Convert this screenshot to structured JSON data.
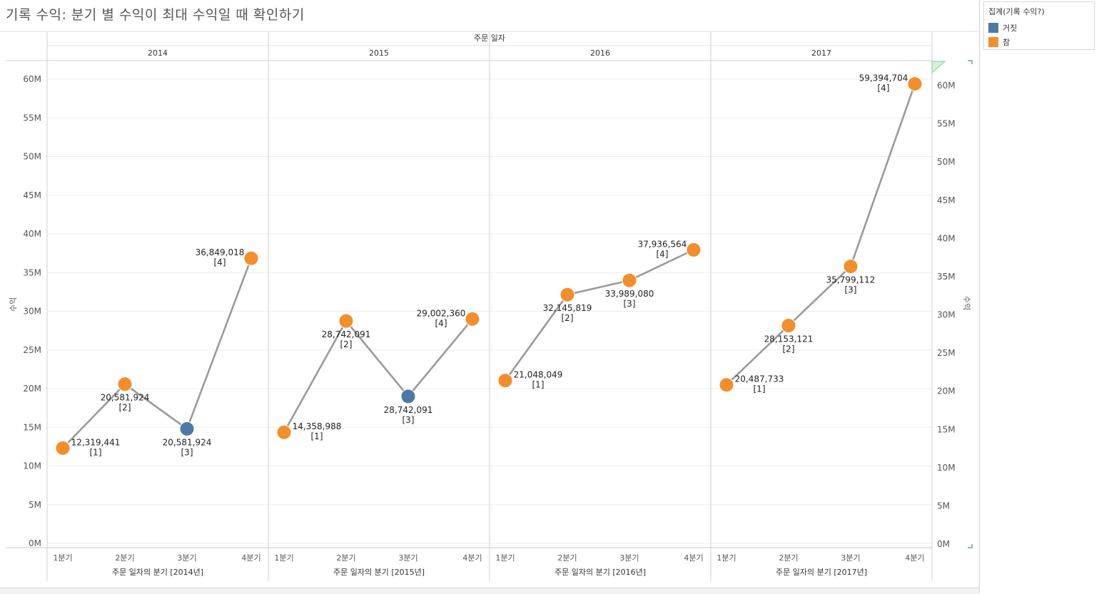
{
  "title": "기록 수익: 분기 별 수익이 최대 수익일 때 확인하기",
  "legend": {
    "title": "집계(기록 수익?)",
    "items": [
      {
        "label": "거짓",
        "color": "#4e79a7"
      },
      {
        "label": "참",
        "color": "#f28e2b"
      }
    ]
  },
  "chart_data": {
    "type": "line",
    "column_header": "주문 일자",
    "ylabel_left": "수익",
    "ylabel_right": "수익",
    "ylim": [
      0,
      62000000
    ],
    "yticks": [
      "0M",
      "5M",
      "10M",
      "15M",
      "20M",
      "25M",
      "30M",
      "35M",
      "40M",
      "45M",
      "50M",
      "55M",
      "60M"
    ],
    "categories": [
      "1분기",
      "2분기",
      "3분기",
      "4분기"
    ],
    "line_color": "#9a9a9a",
    "panels": [
      {
        "year": "2014",
        "xlabel": "주문 일자의 분기 [2014년]",
        "points": [
          {
            "q": "1분기",
            "value": 12319441,
            "flag": "참",
            "label": "12,319,441",
            "sublabel": "[1]",
            "pos": "right"
          },
          {
            "q": "2분기",
            "value": 20581924,
            "flag": "참",
            "label": "20,581,924",
            "sublabel": "[2]",
            "pos": "below"
          },
          {
            "q": "3분기",
            "value": 14800000,
            "flag": "거짓",
            "label": "20,581,924",
            "sublabel": "[3]",
            "pos": "below"
          },
          {
            "q": "4분기",
            "value": 36849018,
            "flag": "참",
            "label": "36,849,018",
            "sublabel": "[4]",
            "pos": "left"
          }
        ]
      },
      {
        "year": "2015",
        "xlabel": "주문 일자의 분기 [2015년]",
        "points": [
          {
            "q": "1분기",
            "value": 14358988,
            "flag": "참",
            "label": "14,358,988",
            "sublabel": "[1]",
            "pos": "right"
          },
          {
            "q": "2분기",
            "value": 28742091,
            "flag": "참",
            "label": "28,742,091",
            "sublabel": "[2]",
            "pos": "below"
          },
          {
            "q": "3분기",
            "value": 19000000,
            "flag": "거짓",
            "label": "28,742,091",
            "sublabel": "[3]",
            "pos": "below"
          },
          {
            "q": "4분기",
            "value": 29002360,
            "flag": "참",
            "label": "29,002,360",
            "sublabel": "[4]",
            "pos": "left"
          }
        ]
      },
      {
        "year": "2016",
        "xlabel": "주문 일자의 분기 [2016년]",
        "points": [
          {
            "q": "1분기",
            "value": 21048049,
            "flag": "참",
            "label": "21,048,049",
            "sublabel": "[1]",
            "pos": "right"
          },
          {
            "q": "2분기",
            "value": 32145819,
            "flag": "참",
            "label": "32,145,819",
            "sublabel": "[2]",
            "pos": "below"
          },
          {
            "q": "3분기",
            "value": 33989080,
            "flag": "참",
            "label": "33,989,080",
            "sublabel": "[3]",
            "pos": "below"
          },
          {
            "q": "4분기",
            "value": 37936564,
            "flag": "참",
            "label": "37,936,564",
            "sublabel": "[4]",
            "pos": "left"
          }
        ]
      },
      {
        "year": "2017",
        "xlabel": "주문 일자의 분기 [2017년]",
        "points": [
          {
            "q": "1분기",
            "value": 20487733,
            "flag": "참",
            "label": "20,487,733",
            "sublabel": "[1]",
            "pos": "right"
          },
          {
            "q": "2분기",
            "value": 28153121,
            "flag": "참",
            "label": "28,153,121",
            "sublabel": "[2]",
            "pos": "below"
          },
          {
            "q": "3분기",
            "value": 35799112,
            "flag": "참",
            "label": "35,799,112",
            "sublabel": "[3]",
            "pos": "below"
          },
          {
            "q": "4분기",
            "value": 59394704,
            "flag": "참",
            "label": "59,394,704",
            "sublabel": "[4]",
            "pos": "left"
          }
        ]
      }
    ]
  }
}
